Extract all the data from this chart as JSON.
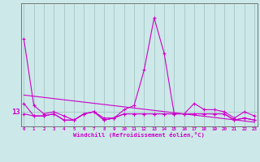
{
  "xlabel": "Windchill (Refroidissement éolien,°C)",
  "background_color": "#cce8e8",
  "grid_color": "#aacccc",
  "line_color": "#cc00cc",
  "x_ticks": [
    0,
    1,
    2,
    3,
    4,
    5,
    6,
    7,
    8,
    9,
    10,
    11,
    12,
    13,
    14,
    15,
    16,
    17,
    18,
    19,
    20,
    21,
    22,
    23
  ],
  "ytick_label": "13",
  "ytick_value": 13,
  "series1": [
    16.5,
    13.3,
    12.9,
    13.0,
    12.8,
    12.6,
    12.9,
    13.0,
    12.7,
    12.7,
    13.1,
    13.3,
    15.0,
    17.5,
    15.8,
    12.9,
    12.9,
    13.4,
    13.1,
    13.1,
    13.0,
    12.7,
    13.0,
    12.8
  ],
  "series2": [
    12.9,
    12.8,
    12.8,
    12.9,
    12.6,
    12.6,
    12.9,
    13.0,
    12.6,
    12.7,
    12.9,
    12.9,
    12.9,
    12.9,
    12.9,
    12.9,
    12.9,
    12.9,
    12.9,
    12.9,
    12.9,
    12.6,
    12.7,
    12.6
  ],
  "series3": [
    13.4,
    12.8,
    12.8,
    12.9,
    12.6,
    12.6,
    12.9,
    13.0,
    12.6,
    12.7,
    12.9,
    12.9,
    12.9,
    12.9,
    12.9,
    12.9,
    12.9,
    12.9,
    12.9,
    12.9,
    12.9,
    12.6,
    12.7,
    12.6
  ],
  "series4_x": [
    0,
    23
  ],
  "series4_y": [
    13.8,
    12.5
  ],
  "ylim": [
    12.3,
    18.2
  ],
  "xlim": [
    -0.3,
    23.3
  ],
  "figwidth": 3.2,
  "figheight": 2.0,
  "dpi": 100
}
